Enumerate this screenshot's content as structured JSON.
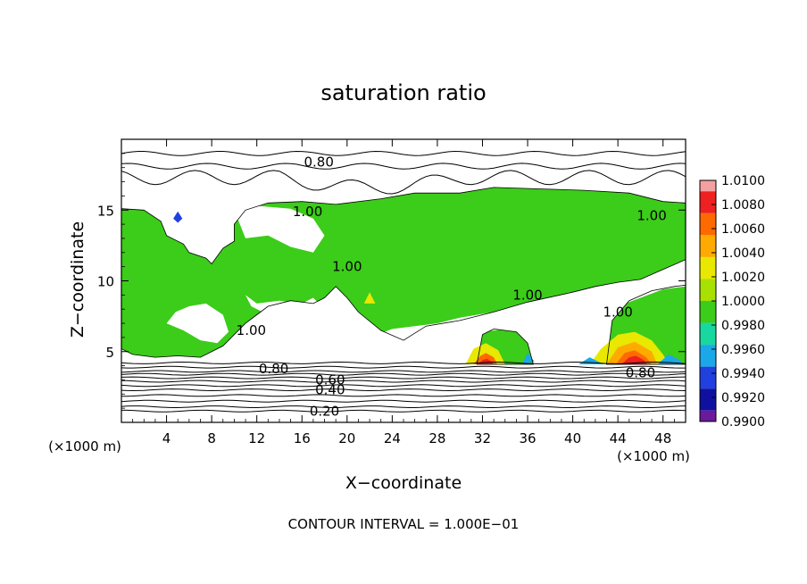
{
  "chart_data": {
    "type": "heatmap",
    "title": "saturation ratio",
    "xlabel": "X−coordinate",
    "ylabel": "Z−coordinate",
    "x_unit_left": "(×1000 m)",
    "x_unit_right": "(×1000 m)",
    "xlim": [
      0,
      50
    ],
    "ylim": [
      0,
      20
    ],
    "xticks": [
      4,
      8,
      12,
      16,
      20,
      24,
      28,
      32,
      36,
      40,
      44,
      48
    ],
    "yticks": [
      5,
      10,
      15
    ],
    "contour_interval_text": "CONTOUR INTERVAL = 1.000E−01",
    "contour_labels": [
      {
        "text": "0.80",
        "x": 17.5,
        "y": 18.4
      },
      {
        "text": "1.00",
        "x": 16.5,
        "y": 14.9
      },
      {
        "text": "1.00",
        "x": 47.0,
        "y": 14.6
      },
      {
        "text": "1.00",
        "x": 20.0,
        "y": 11.0
      },
      {
        "text": "1.00",
        "x": 36.0,
        "y": 9.0
      },
      {
        "text": "1.00",
        "x": 44.0,
        "y": 7.8
      },
      {
        "text": "1.00",
        "x": 11.5,
        "y": 6.5
      },
      {
        "text": "0.80",
        "x": 13.5,
        "y": 3.8
      },
      {
        "text": "0.80",
        "x": 46.0,
        "y": 3.5
      },
      {
        "text": "0.60",
        "x": 18.5,
        "y": 3.0
      },
      {
        "text": "0.40",
        "x": 18.5,
        "y": 2.3
      },
      {
        "text": "0.20",
        "x": 18.0,
        "y": 0.8
      }
    ],
    "colorbar": {
      "labels": [
        "1.0100",
        "1.0080",
        "1.0060",
        "1.0040",
        "1.0020",
        "1.0000",
        "0.9980",
        "0.9960",
        "0.9940",
        "0.9920",
        "0.9900"
      ],
      "colors": [
        "#f4a0a0",
        "#ee2020",
        "#ff6a00",
        "#ffaa00",
        "#e8e800",
        "#a8e000",
        "#3ccc1a",
        "#18d8a0",
        "#1aa8e8",
        "#2040e0",
        "#1010a0",
        "#6a1a9a"
      ]
    },
    "fill_regions": [
      {
        "band": "supersaturated",
        "color": "#3ccc1a",
        "points": [
          [
            0,
            15.1
          ],
          [
            2,
            15
          ],
          [
            3.5,
            14.2
          ],
          [
            4,
            13.2
          ],
          [
            5.5,
            12.6
          ],
          [
            6,
            12
          ],
          [
            7.5,
            11.6
          ],
          [
            8,
            11.2
          ],
          [
            9,
            12.3
          ],
          [
            10,
            12.8
          ],
          [
            10,
            14
          ],
          [
            11,
            15
          ],
          [
            13,
            15.5
          ],
          [
            16,
            15.6
          ],
          [
            19,
            15.4
          ],
          [
            23,
            15.8
          ],
          [
            26,
            16.2
          ],
          [
            30,
            16.2
          ],
          [
            33,
            16.6
          ],
          [
            37,
            16.5
          ],
          [
            41,
            16.4
          ],
          [
            45,
            16.2
          ],
          [
            48,
            15.6
          ],
          [
            50,
            15.5
          ],
          [
            50,
            11.5
          ],
          [
            48,
            10.8
          ],
          [
            46,
            10.1
          ],
          [
            44,
            9.9
          ],
          [
            42,
            9.6
          ],
          [
            40,
            9.2
          ],
          [
            36,
            8.5
          ],
          [
            33,
            7.8
          ],
          [
            30,
            7.2
          ],
          [
            27,
            6.8
          ],
          [
            25,
            5.8
          ],
          [
            23,
            6.5
          ],
          [
            21,
            7.8
          ],
          [
            20,
            8.8
          ],
          [
            19,
            9.6
          ],
          [
            18,
            8.8
          ],
          [
            17,
            8.4
          ],
          [
            15,
            8.6
          ],
          [
            13,
            8.2
          ],
          [
            12,
            7.6
          ],
          [
            11,
            7.0
          ],
          [
            10,
            6.2
          ],
          [
            9,
            5.4
          ],
          [
            7,
            4.6
          ],
          [
            5,
            4.7
          ],
          [
            3,
            4.6
          ],
          [
            1,
            4.8
          ],
          [
            0,
            5.2
          ]
        ]
      },
      {
        "band": "supersaturated",
        "color": "#3ccc1a",
        "points": [
          [
            31.5,
            4.1
          ],
          [
            32,
            6.2
          ],
          [
            33,
            6.6
          ],
          [
            35,
            6.4
          ],
          [
            36,
            5.6
          ],
          [
            36.5,
            4.1
          ]
        ]
      },
      {
        "band": "supersaturated",
        "color": "#3ccc1a",
        "points": [
          [
            43,
            4.1
          ],
          [
            43.5,
            7.2
          ],
          [
            45,
            8.6
          ],
          [
            47,
            9.3
          ],
          [
            49,
            9.6
          ],
          [
            50,
            9.7
          ],
          [
            50,
            4.1
          ]
        ]
      },
      {
        "band": "clear",
        "color": "#ffffff",
        "points": [
          [
            11,
            9
          ],
          [
            12,
            8.4
          ],
          [
            14,
            8.6
          ],
          [
            16,
            8.4
          ],
          [
            17,
            8.8
          ],
          [
            18,
            8
          ],
          [
            19,
            7.6
          ],
          [
            20,
            7.2
          ],
          [
            21,
            6.2
          ],
          [
            22,
            6
          ],
          [
            24,
            6.6
          ],
          [
            26,
            6.8
          ],
          [
            28,
            7
          ],
          [
            30,
            7.4
          ],
          [
            33,
            7.8
          ],
          [
            36,
            8.4
          ],
          [
            38,
            8.8
          ],
          [
            40,
            9.2
          ],
          [
            43,
            9.6
          ],
          [
            46,
            9.8
          ],
          [
            48,
            10.2
          ],
          [
            50,
            10.6
          ],
          [
            50,
            9.6
          ],
          [
            48,
            9.4
          ],
          [
            46,
            8.8
          ],
          [
            44,
            8.2
          ],
          [
            42,
            7.8
          ],
          [
            40,
            7.6
          ],
          [
            38,
            7.4
          ],
          [
            36,
            7.2
          ],
          [
            34,
            6.6
          ],
          [
            32,
            6.4
          ],
          [
            30,
            6.2
          ],
          [
            28,
            5.8
          ],
          [
            26,
            5.4
          ],
          [
            24,
            4.8
          ],
          [
            22,
            4.4
          ],
          [
            20,
            4.2
          ],
          [
            18,
            4.6
          ],
          [
            17,
            5.2
          ],
          [
            16,
            6
          ],
          [
            15,
            7
          ],
          [
            13,
            7.6
          ],
          [
            11.5,
            8.2
          ]
        ]
      },
      {
        "band": "clear",
        "color": "#ffffff",
        "points": [
          [
            4,
            7
          ],
          [
            5.5,
            6.5
          ],
          [
            7,
            5.8
          ],
          [
            8.5,
            5.6
          ],
          [
            9.5,
            6.4
          ],
          [
            9,
            7.6
          ],
          [
            7.5,
            8.4
          ],
          [
            6,
            8.2
          ],
          [
            4.8,
            7.8
          ]
        ]
      },
      {
        "band": "clear",
        "color": "#ffffff",
        "points": [
          [
            10,
            15
          ],
          [
            11,
            13
          ],
          [
            13,
            13.2
          ],
          [
            15,
            12.4
          ],
          [
            17,
            12
          ],
          [
            18,
            13.2
          ],
          [
            17,
            14.4
          ],
          [
            15,
            15.1
          ],
          [
            12,
            15.3
          ]
        ]
      },
      {
        "band": "warm",
        "color": "#e8e800",
        "points": [
          [
            41.5,
            4.1
          ],
          [
            42.5,
            5.2
          ],
          [
            44,
            6.2
          ],
          [
            45.5,
            6.4
          ],
          [
            47,
            5.8
          ],
          [
            48,
            4.8
          ],
          [
            48.5,
            4.1
          ]
        ]
      },
      {
        "band": "warm",
        "color": "#ffaa00",
        "points": [
          [
            43,
            4.1
          ],
          [
            44,
            5.3
          ],
          [
            45.5,
            5.7
          ],
          [
            47,
            5
          ],
          [
            47.5,
            4.1
          ]
        ]
      },
      {
        "band": "warm",
        "color": "#ff6a00",
        "points": [
          [
            43.8,
            4.1
          ],
          [
            44.6,
            4.9
          ],
          [
            45.5,
            5.1
          ],
          [
            46.5,
            4.6
          ],
          [
            47,
            4.1
          ]
        ]
      },
      {
        "band": "warm",
        "color": "#ee2020",
        "points": [
          [
            44.3,
            4.1
          ],
          [
            45,
            4.6
          ],
          [
            45.6,
            4.7
          ],
          [
            46.3,
            4.4
          ],
          [
            46.6,
            4.1
          ]
        ]
      },
      {
        "band": "warm",
        "color": "#e8e800",
        "points": [
          [
            30.5,
            4.1
          ],
          [
            31.2,
            5.2
          ],
          [
            32.3,
            5.6
          ],
          [
            33.4,
            5.1
          ],
          [
            34,
            4.1
          ]
        ]
      },
      {
        "band": "warm",
        "color": "#ff6a00",
        "points": [
          [
            31.2,
            4.1
          ],
          [
            31.8,
            4.7
          ],
          [
            32.3,
            4.9
          ],
          [
            33,
            4.6
          ],
          [
            33.3,
            4.1
          ]
        ]
      },
      {
        "band": "warm",
        "color": "#ee2020",
        "points": [
          [
            31.6,
            4.1
          ],
          [
            32,
            4.4
          ],
          [
            32.4,
            4.5
          ],
          [
            32.8,
            4.3
          ],
          [
            33,
            4.1
          ]
        ]
      },
      {
        "band": "warm",
        "color": "#e8e800",
        "points": [
          [
            21.5,
            8.4
          ],
          [
            22,
            9.2
          ],
          [
            22.5,
            8.4
          ]
        ]
      },
      {
        "band": "subsaturated",
        "color": "#1aa8e8",
        "points": [
          [
            40.5,
            4.1
          ],
          [
            41.5,
            4.6
          ],
          [
            42.5,
            4.2
          ],
          [
            42.8,
            4.1
          ]
        ]
      },
      {
        "band": "subsaturated",
        "color": "#1aa8e8",
        "points": [
          [
            47.5,
            4.1
          ],
          [
            48.5,
            4.8
          ],
          [
            49.5,
            4.4
          ],
          [
            49.8,
            4.1
          ]
        ]
      },
      {
        "band": "subsaturated",
        "color": "#2040e0",
        "points": [
          [
            4.6,
            14.4
          ],
          [
            5,
            14.9
          ],
          [
            5.4,
            14.4
          ],
          [
            5,
            14.1
          ]
        ]
      },
      {
        "band": "subsaturated",
        "color": "#1aa8e8",
        "points": [
          [
            35.5,
            4.1
          ],
          [
            36,
            4.9
          ],
          [
            36.6,
            4.3
          ]
        ]
      }
    ]
  }
}
